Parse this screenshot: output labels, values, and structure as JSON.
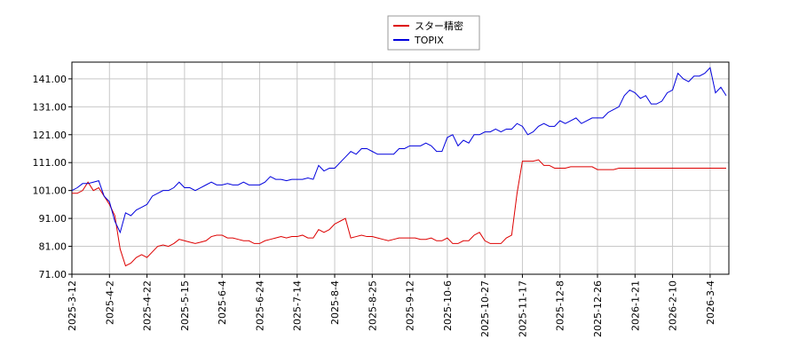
{
  "chart_data": {
    "type": "line",
    "categories": [
      "2025-3-12",
      null,
      null,
      null,
      null,
      null,
      null,
      "2025-4-2",
      null,
      null,
      null,
      null,
      null,
      null,
      "2025-4-22",
      null,
      null,
      null,
      null,
      null,
      null,
      "2025-5-15",
      null,
      null,
      null,
      null,
      null,
      null,
      "2025-6-4",
      null,
      null,
      null,
      null,
      null,
      null,
      "2025-6-24",
      null,
      null,
      null,
      null,
      null,
      null,
      "2025-7-14",
      null,
      null,
      null,
      null,
      null,
      null,
      "2025-8-4",
      null,
      null,
      null,
      null,
      null,
      null,
      "2025-8-25",
      null,
      null,
      null,
      null,
      null,
      null,
      "2025-9-12",
      null,
      null,
      null,
      null,
      null,
      null,
      "2025-10-6",
      null,
      null,
      null,
      null,
      null,
      null,
      "2025-10-27",
      null,
      null,
      null,
      null,
      null,
      null,
      "2025-11-17",
      null,
      null,
      null,
      null,
      null,
      null,
      "2025-12-8",
      null,
      null,
      null,
      null,
      null,
      null,
      "2025-12-26",
      null,
      null,
      null,
      null,
      null,
      null,
      "2026-1-21",
      null,
      null,
      null,
      null,
      null,
      null,
      "2026-2-10",
      null,
      null,
      null,
      null,
      null,
      null,
      "2026-3-4",
      null,
      null,
      null
    ],
    "series": [
      {
        "name": "スター精密",
        "color": "#dd0000",
        "values": [
          100,
          100,
          101,
          104,
          101,
          102,
          99,
          96,
          92,
          80,
          74,
          75,
          77,
          78,
          77,
          79,
          81,
          81.5,
          81,
          82,
          83.5,
          83,
          82.5,
          82,
          82.5,
          83,
          84.5,
          85,
          85,
          84,
          84,
          83.5,
          83,
          83,
          82,
          82,
          83,
          83.5,
          84,
          84.5,
          84,
          84.5,
          84.5,
          85,
          84,
          84,
          87,
          86,
          87,
          89,
          90,
          91,
          84,
          84.5,
          85,
          84.5,
          84.5,
          84,
          83.5,
          83,
          83.5,
          84,
          84,
          84,
          84,
          83.5,
          83.5,
          84,
          83,
          83,
          84,
          82,
          82,
          83,
          83,
          85,
          86,
          83,
          82,
          82,
          82,
          84,
          85,
          100,
          111.5,
          111.5,
          111.5,
          112,
          110,
          110,
          109,
          109,
          109,
          109.5,
          109.5,
          109.5,
          109.5,
          109.5,
          108.5,
          108.5,
          108.5,
          108.5,
          109,
          109,
          109,
          109,
          109,
          109,
          109,
          109,
          109,
          109,
          109,
          109,
          109,
          109,
          109,
          109,
          109,
          109,
          109,
          109,
          109
        ]
      },
      {
        "name": "TOPIX",
        "color": "#0000dd",
        "values": [
          101,
          102,
          103.5,
          103.5,
          104,
          104.5,
          99,
          97,
          90,
          86,
          93,
          92,
          94,
          95,
          96,
          99,
          100,
          101,
          101,
          102,
          104,
          102,
          102,
          101,
          102,
          103,
          104,
          103,
          103,
          103.5,
          103,
          103,
          104,
          103,
          103,
          103,
          104,
          106,
          105,
          105,
          104.5,
          105,
          105,
          105,
          105.5,
          105,
          110,
          108,
          109,
          109,
          111,
          113,
          115,
          114,
          116,
          116,
          115,
          114,
          114,
          114,
          114,
          116,
          116,
          117,
          117,
          117,
          118,
          117,
          115,
          115,
          120,
          121,
          117,
          119,
          118,
          121,
          121,
          122,
          122,
          123,
          122,
          123,
          123,
          125,
          124,
          121,
          122,
          124,
          125,
          124,
          124,
          126,
          125,
          126,
          127,
          125,
          126,
          127,
          127,
          127,
          129,
          130,
          131,
          135,
          137,
          136,
          134,
          135,
          132,
          132,
          133,
          136,
          137,
          143,
          141,
          140,
          142,
          142,
          143,
          145,
          136,
          138,
          135
        ]
      }
    ],
    "ylim": [
      71,
      147
    ],
    "yticks": [
      {
        "value": 71,
        "label": "71.00"
      },
      {
        "value": 81,
        "label": "81.00"
      },
      {
        "value": 91,
        "label": "91.00"
      },
      {
        "value": 101,
        "label": "101.00"
      },
      {
        "value": 111,
        "label": "111.00"
      },
      {
        "value": 121,
        "label": "121.00"
      },
      {
        "value": 131,
        "label": "131.00"
      },
      {
        "value": 141,
        "label": "141.00"
      }
    ],
    "grid": true,
    "legend": "top"
  }
}
